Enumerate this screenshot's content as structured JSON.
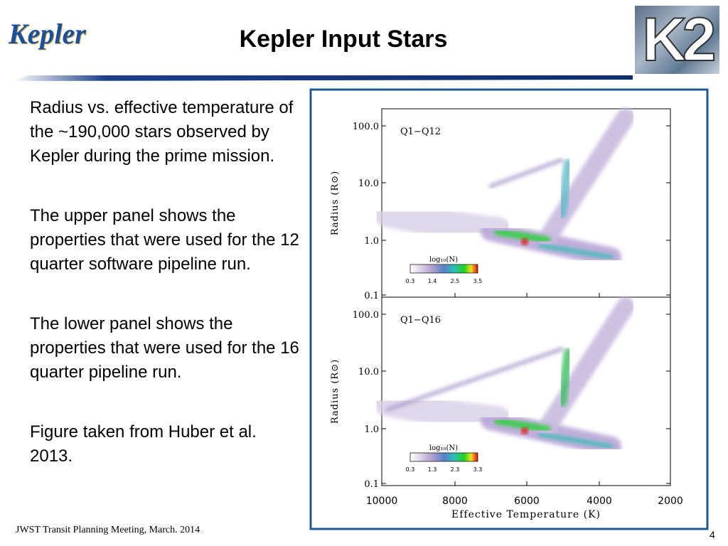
{
  "header": {
    "logo": "Kepler",
    "title": "Kepler Input Stars",
    "badge": "K2"
  },
  "body": {
    "paragraphs": [
      "Radius vs. effective temperature of the ~190,000 stars observed by Kepler during the prime mission.",
      "The upper panel shows the properties that were used for the 12 quarter software pipeline run.",
      "The lower panel shows the properties that were used for the 16 quarter pipeline run.",
      "Figure taken from Huber et al. 2013."
    ]
  },
  "figure": {
    "panels": [
      {
        "label": "Q1−Q12",
        "colorbar_title": "log₁₀(N)",
        "colorbar_ticks": [
          "0.3",
          "1.4",
          "2.5",
          "3.5"
        ]
      },
      {
        "label": "Q1−Q16",
        "colorbar_title": "log₁₀(N)",
        "colorbar_ticks": [
          "0.3",
          "1.3",
          "2.3",
          "3.3"
        ]
      }
    ],
    "y_ticks": [
      "100.0",
      "10.0",
      "1.0",
      "0.1"
    ],
    "x_ticks": [
      "10000",
      "8000",
      "6000",
      "4000",
      "2000"
    ],
    "y_label": "Radius (R⊙)",
    "x_label": "Effective Temperature (K)"
  },
  "footer": {
    "text": "JWST Transit Planning Meeting, March. 2014",
    "page": "4"
  }
}
